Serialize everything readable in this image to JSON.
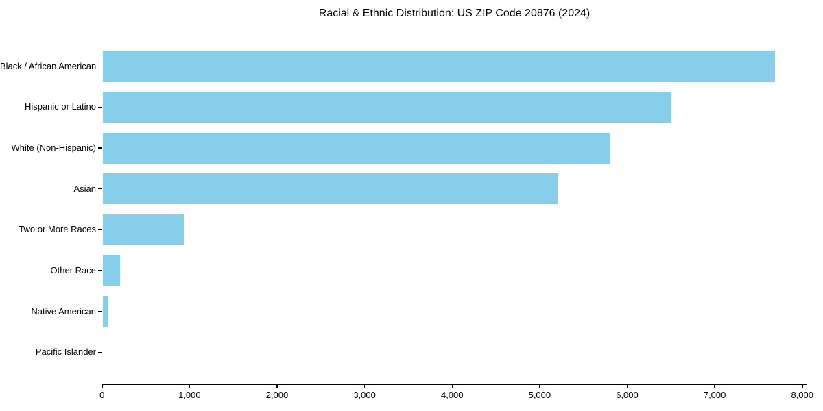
{
  "title": "Racial & Ethnic Distribution: US ZIP Code 20876 (2024)",
  "chart_data": {
    "type": "bar",
    "orientation": "horizontal",
    "title": "Racial & Ethnic Distribution: US ZIP Code 20876 (2024)",
    "categories": [
      "Black / African American",
      "Hispanic or Latino",
      "White (Non-Hispanic)",
      "Asian",
      "Two or More Races",
      "Other Race",
      "Native American",
      "Pacific Islander"
    ],
    "values": [
      7680,
      6500,
      5800,
      5200,
      930,
      200,
      65,
      0
    ],
    "xlabel": "",
    "ylabel": "",
    "xlim": [
      0,
      8060
    ],
    "x_ticks": [
      0,
      1000,
      2000,
      3000,
      4000,
      5000,
      6000,
      7000,
      8000
    ],
    "x_tick_labels": [
      "0",
      "1,000",
      "2,000",
      "3,000",
      "4,000",
      "5,000",
      "6,000",
      "7,000",
      "8,000"
    ],
    "bar_color": "#87CEEB",
    "axis_color": "#000000",
    "text_color": "#000000",
    "background_color": "#ffffff",
    "grid": false,
    "legend": false
  }
}
